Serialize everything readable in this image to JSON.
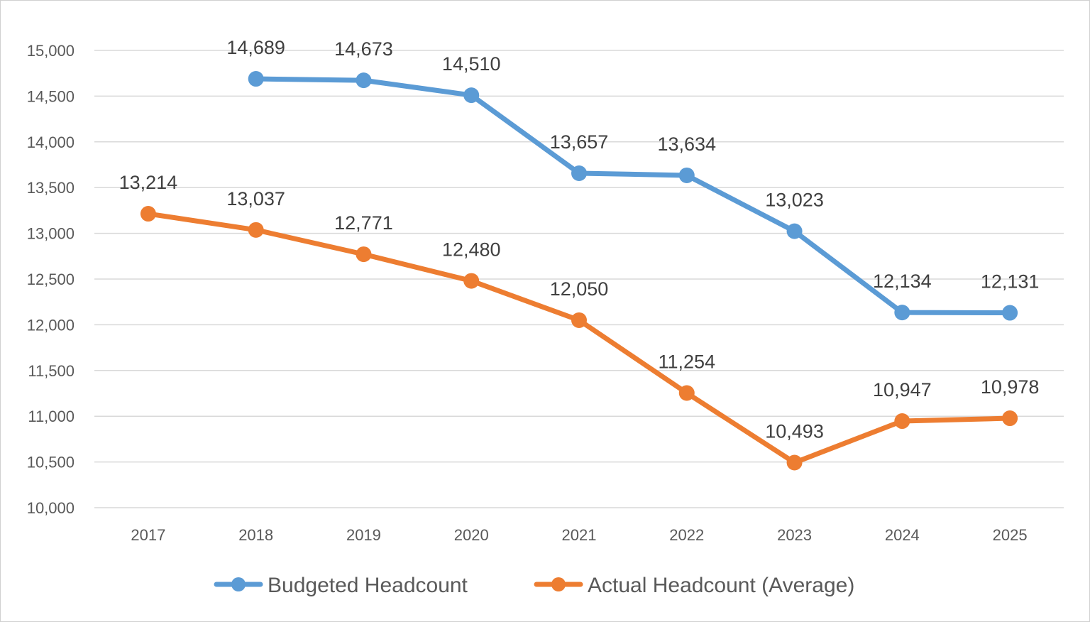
{
  "chart_data": {
    "type": "line",
    "title": "",
    "xlabel": "",
    "ylabel": "",
    "categories": [
      "2017",
      "2018",
      "2019",
      "2020",
      "2021",
      "2022",
      "2023",
      "2024",
      "2025"
    ],
    "ylim": [
      10000,
      15000
    ],
    "yticks": [
      10000,
      10500,
      11000,
      11500,
      12000,
      12500,
      13000,
      13500,
      14000,
      14500,
      15000
    ],
    "ytick_labels": [
      "10,000",
      "10,500",
      "11,000",
      "11,500",
      "12,000",
      "12,500",
      "13,000",
      "13,500",
      "14,000",
      "14,500",
      "15,000"
    ],
    "grid": true,
    "legend_position": "bottom",
    "series": [
      {
        "name": "Budgeted Headcount",
        "color": "#5B9BD5",
        "values": [
          null,
          14689,
          14673,
          14510,
          13657,
          13634,
          13023,
          12134,
          12131
        ],
        "labels": [
          null,
          "14,689",
          "14,673",
          "14,510",
          "13,657",
          "13,634",
          "13,023",
          "12,134",
          "12,131"
        ]
      },
      {
        "name": "Actual Headcount (Average)",
        "color": "#ED7D31",
        "values": [
          13214,
          13037,
          12771,
          12480,
          12050,
          11254,
          10493,
          10947,
          10978
        ],
        "labels": [
          "13,214",
          "13,037",
          "12,771",
          "12,480",
          "12,050",
          "11,254",
          "10,493",
          "10,947",
          "10,978"
        ]
      }
    ]
  }
}
